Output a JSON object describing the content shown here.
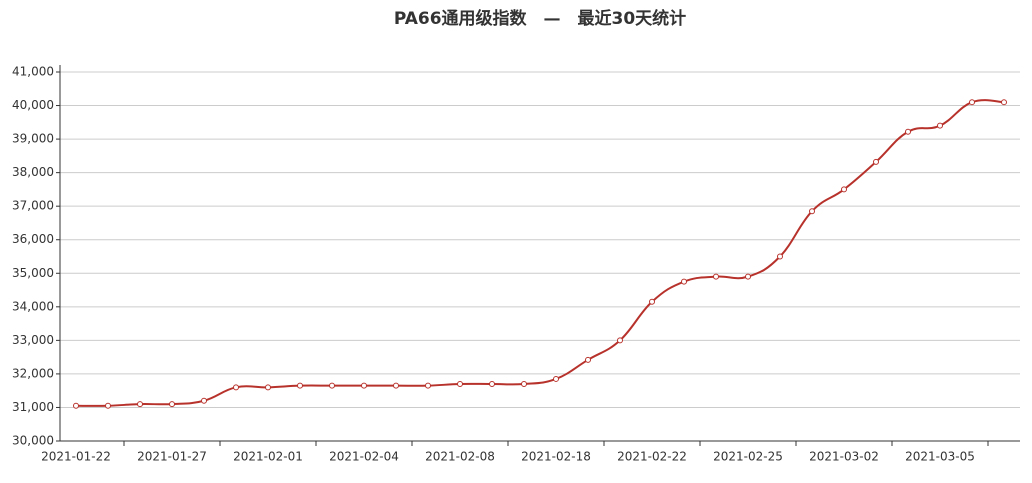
{
  "chart_data": {
    "type": "line",
    "title": "PA66通用级指数　—　最近30天统计",
    "categories": [
      "2021-01-22",
      null,
      null,
      "2021-01-27",
      null,
      null,
      "2021-02-01",
      null,
      null,
      "2021-02-04",
      null,
      null,
      "2021-02-08",
      null,
      null,
      "2021-02-18",
      null,
      null,
      "2021-02-22",
      null,
      null,
      "2021-02-25",
      null,
      null,
      "2021-03-02",
      null,
      null,
      "2021-03-05",
      null,
      null
    ],
    "series": [
      {
        "color": "#b8322c",
        "values": [
          31050,
          31050,
          31100,
          31100,
          31200,
          31600,
          31600,
          31650,
          31650,
          31650,
          31650,
          31650,
          31700,
          31700,
          31700,
          31850,
          32420,
          33000,
          34150,
          34750,
          34900,
          34900,
          35500,
          36850,
          37500,
          38320,
          39220,
          39400,
          40100,
          40100
        ]
      }
    ],
    "ylim": [
      30000,
      41000
    ],
    "yticks": [
      {
        "value": 30000,
        "label": "30,000"
      },
      {
        "value": 31000,
        "label": "31,000"
      },
      {
        "value": 32000,
        "label": "32,000"
      },
      {
        "value": 33000,
        "label": "33,000"
      },
      {
        "value": 34000,
        "label": "34,000"
      },
      {
        "value": 35000,
        "label": "35,000"
      },
      {
        "value": 36000,
        "label": "36,000"
      },
      {
        "value": 37000,
        "label": "37,000"
      },
      {
        "value": 38000,
        "label": "38,000"
      },
      {
        "value": 39000,
        "label": "39,000"
      },
      {
        "value": 40000,
        "label": "40,000"
      },
      {
        "value": 41000,
        "label": "41,000"
      }
    ],
    "grid": true
  }
}
